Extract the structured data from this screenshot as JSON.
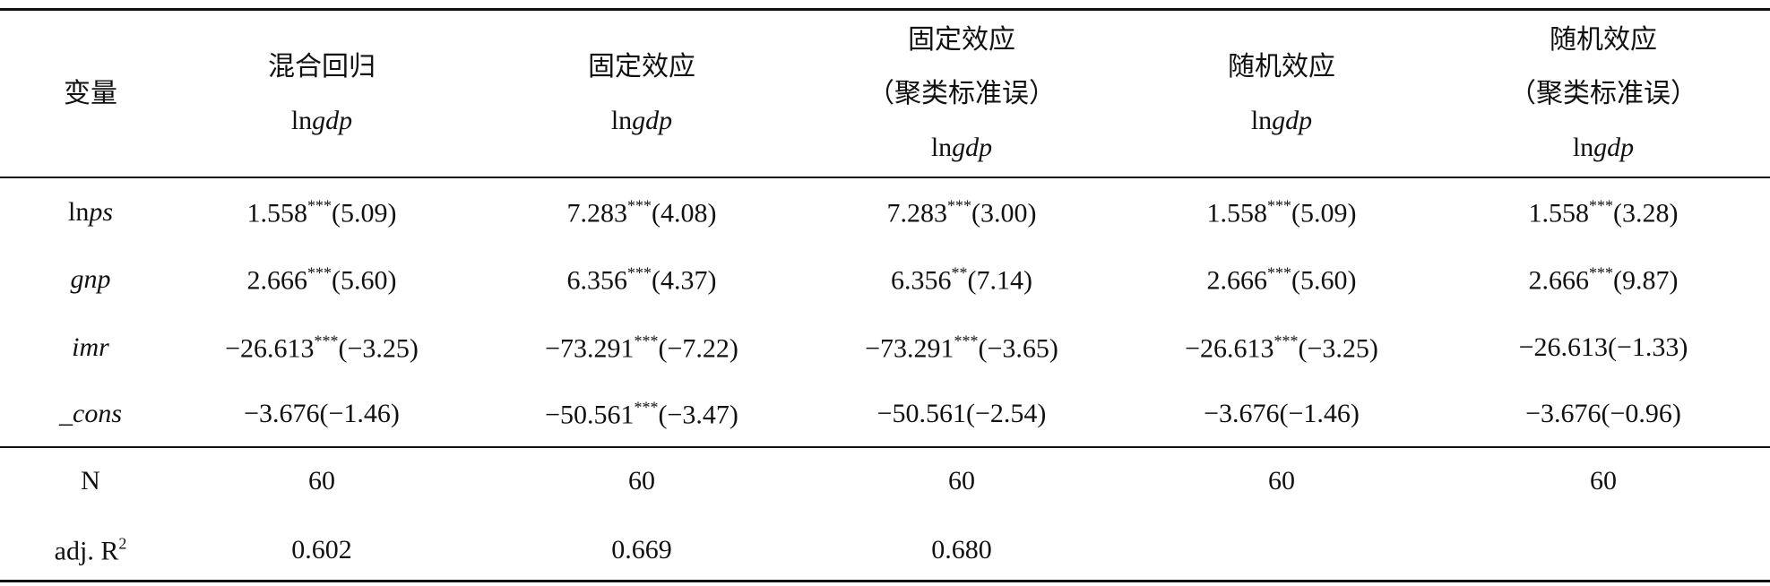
{
  "table": {
    "header": [
      [
        "变量"
      ],
      [
        "混合回归"
      ],
      [
        "固定效应"
      ],
      [
        "固定效应",
        "（聚类标准误）"
      ],
      [
        "随机效应"
      ],
      [
        "随机效应",
        "（聚类标准误）"
      ]
    ],
    "dep_var": {
      "prefix": "ln",
      "italic": "gdp"
    },
    "rows": [
      {
        "var": {
          "prefix": "ln",
          "italic": "ps"
        },
        "cells": [
          {
            "coef": "1.558",
            "stars": "***",
            "t": "(5.09)"
          },
          {
            "coef": "7.283",
            "stars": "***",
            "t": "(4.08)"
          },
          {
            "coef": "7.283",
            "stars": "***",
            "t": "(3.00)"
          },
          {
            "coef": "1.558",
            "stars": "***",
            "t": "(5.09)"
          },
          {
            "coef": "1.558",
            "stars": "***",
            "t": "(3.28)"
          }
        ]
      },
      {
        "var": {
          "italic": "gnp"
        },
        "cells": [
          {
            "coef": "2.666",
            "stars": "***",
            "t": "(5.60)"
          },
          {
            "coef": "6.356",
            "stars": "***",
            "t": "(4.37)"
          },
          {
            "coef": "6.356",
            "stars": "**",
            "t": "(7.14)"
          },
          {
            "coef": "2.666",
            "stars": "***",
            "t": "(5.60)"
          },
          {
            "coef": "2.666",
            "stars": "***",
            "t": "(9.87)"
          }
        ]
      },
      {
        "var": {
          "italic": "imr"
        },
        "cells": [
          {
            "coef": "−26.613",
            "stars": "***",
            "t": "(−3.25)"
          },
          {
            "coef": "−73.291",
            "stars": "***",
            "t": "(−7.22)"
          },
          {
            "coef": "−73.291",
            "stars": "***",
            "t": "(−3.65)"
          },
          {
            "coef": "−26.613",
            "stars": "***",
            "t": "(−3.25)"
          },
          {
            "coef": "−26.613",
            "t": "(−1.33)"
          }
        ]
      },
      {
        "var": {
          "italic": "_cons"
        },
        "cells": [
          {
            "coef": "−3.676",
            "t": "(−1.46)"
          },
          {
            "coef": "−50.561",
            "stars": "***",
            "t": "(−3.47)"
          },
          {
            "coef": "−50.561",
            "t": "(−2.54)"
          },
          {
            "coef": "−3.676",
            "t": "(−1.46)"
          },
          {
            "coef": "−3.676",
            "t": "(−0.96)"
          }
        ]
      }
    ],
    "stats": [
      {
        "label": {
          "text": "N"
        },
        "values": [
          "60",
          "60",
          "60",
          "60",
          "60"
        ]
      },
      {
        "label": {
          "text": "adj. R",
          "sup": "2"
        },
        "values": [
          "0.602",
          "0.669",
          "0.680",
          null,
          null
        ]
      }
    ]
  }
}
